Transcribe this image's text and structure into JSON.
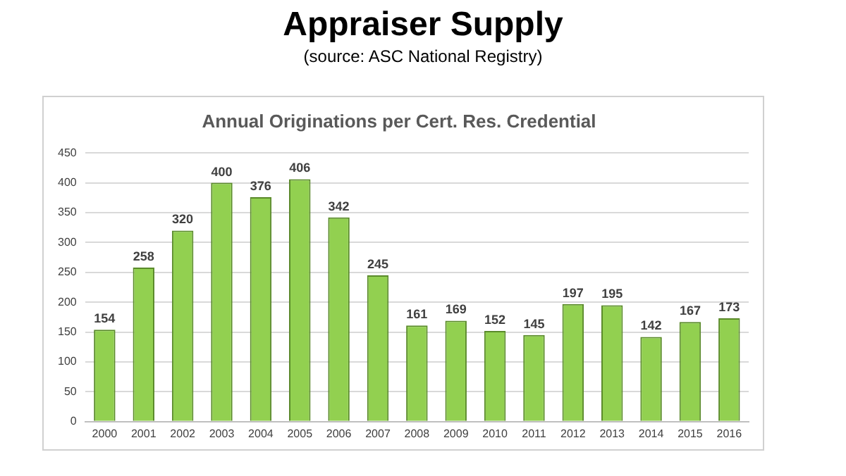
{
  "chart_data": {
    "type": "bar",
    "title": "Appraiser Supply",
    "subtitle": "(source: ASC National Registry)",
    "annotations": [
      "Annual Originations per Cert. Res. Credential"
    ],
    "categories": [
      "2000",
      "2001",
      "2002",
      "2003",
      "2004",
      "2005",
      "2006",
      "2007",
      "2008",
      "2009",
      "2010",
      "2011",
      "2012",
      "2013",
      "2014",
      "2015",
      "2016"
    ],
    "values": [
      154,
      258,
      320,
      400,
      376,
      406,
      342,
      245,
      161,
      169,
      152,
      145,
      197,
      195,
      142,
      167,
      173
    ],
    "color": "#92d050",
    "ylim": [
      0,
      450
    ],
    "yticks": [
      0,
      50,
      100,
      150,
      200,
      250,
      300,
      350,
      400,
      450
    ],
    "grid": "y",
    "data_labels": true,
    "legend": false
  }
}
